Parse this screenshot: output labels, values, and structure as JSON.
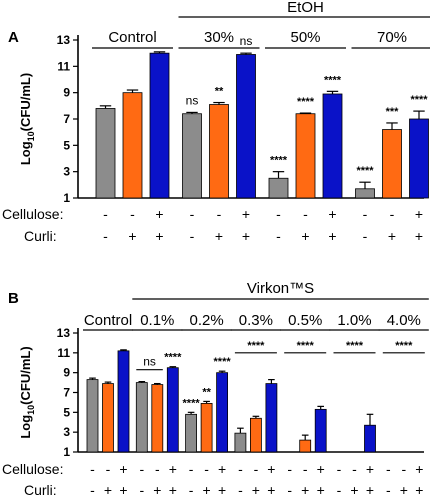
{
  "chart_data": [
    {
      "type": "bar",
      "panel": "A",
      "ylabel": "Log10(CFU/mL)",
      "ylim": [
        1,
        13
      ],
      "yticks": [
        1,
        3,
        5,
        7,
        9,
        11,
        13
      ],
      "group_header": "EtOH",
      "groups": [
        {
          "label": "Control",
          "values": [
            7.8,
            9.0,
            12.0
          ],
          "errors": [
            0.2,
            0.2,
            0.1
          ],
          "sig": [
            "",
            "",
            ""
          ]
        },
        {
          "label": "30%",
          "values": [
            7.4,
            8.1,
            11.9
          ],
          "errors": [
            0.1,
            0.15,
            0.1
          ],
          "sig": [
            "ns",
            "**",
            "ns"
          ]
        },
        {
          "label": "50%",
          "values": [
            2.5,
            7.4,
            8.9
          ],
          "errors": [
            0.5,
            0.05,
            0.2
          ],
          "sig": [
            "****",
            "****",
            "****"
          ]
        },
        {
          "label": "70%",
          "values": [
            1.7,
            6.2,
            7.0
          ],
          "errors": [
            0.5,
            0.5,
            0.6
          ],
          "sig": [
            "****",
            "***",
            "****"
          ]
        }
      ],
      "series_colors": [
        "#8c8c8c",
        "#ff6a13",
        "#0a12c8"
      ],
      "conditions": {
        "cellulose_label": "Cellulose:",
        "curli_label": "Curli:",
        "cellulose": [
          "-",
          "-",
          "+",
          "-",
          "-",
          "+",
          "-",
          "-",
          "+",
          "-",
          "-",
          "+"
        ],
        "curli": [
          "-",
          "+",
          "+",
          "-",
          "+",
          "+",
          "-",
          "+",
          "+",
          "-",
          "+",
          "+"
        ]
      }
    },
    {
      "type": "bar",
      "panel": "B",
      "ylabel": "Log10(CFU/mL)",
      "ylim": [
        1,
        13
      ],
      "yticks": [
        1,
        3,
        5,
        7,
        9,
        11,
        13
      ],
      "group_header": "Virkon™S",
      "groups": [
        {
          "label": "Control",
          "values": [
            8.3,
            7.9,
            11.2
          ],
          "errors": [
            0.15,
            0.15,
            0.1
          ],
          "sig": [
            "",
            "",
            ""
          ]
        },
        {
          "label": "0.1%",
          "values": [
            8.0,
            7.8,
            9.5
          ],
          "errors": [
            0.1,
            0.1,
            0.1
          ],
          "sig": [
            "",
            "",
            "****"
          ]
        },
        {
          "label": "0.2%",
          "values": [
            4.8,
            5.9,
            9.0
          ],
          "errors": [
            0.2,
            0.2,
            0.15
          ],
          "sig": [
            "****",
            "**",
            "****"
          ]
        },
        {
          "label": "0.3%",
          "values": [
            2.9,
            4.4,
            7.9
          ],
          "errors": [
            0.5,
            0.2,
            0.4
          ],
          "sig": [
            "",
            "",
            ""
          ]
        },
        {
          "label": "0.5%",
          "values": [
            0,
            2.2,
            5.3
          ],
          "errors": [
            0,
            0.5,
            0.3
          ],
          "sig": [
            "",
            "",
            ""
          ]
        },
        {
          "label": "1.0%",
          "values": [
            0,
            0,
            3.7
          ],
          "errors": [
            0,
            0,
            1.1
          ],
          "sig": [
            "",
            "",
            ""
          ]
        },
        {
          "label": "4.0%",
          "values": [
            0,
            0,
            0
          ],
          "errors": [
            0,
            0,
            0
          ],
          "sig": [
            "",
            "",
            ""
          ]
        }
      ],
      "brackets": [
        {
          "from_group": 1,
          "from_bar": 0,
          "to_group": 1,
          "to_bar": 1,
          "label": "ns",
          "y": 9.3
        },
        {
          "from_group": 3,
          "from_bar": 0,
          "to_group": 3,
          "to_bar": 2,
          "label": "****",
          "y": 11.0
        },
        {
          "from_group": 4,
          "from_bar": 0,
          "to_group": 4,
          "to_bar": 2,
          "label": "****",
          "y": 11.0
        },
        {
          "from_group": 5,
          "from_bar": 0,
          "to_group": 5,
          "to_bar": 2,
          "label": "****",
          "y": 11.0
        },
        {
          "from_group": 6,
          "from_bar": 0,
          "to_group": 6,
          "to_bar": 2,
          "label": "****",
          "y": 11.0
        }
      ],
      "series_colors": [
        "#8c8c8c",
        "#ff6a13",
        "#0a12c8"
      ],
      "conditions": {
        "cellulose_label": "Cellulose:",
        "curli_label": "Curli:",
        "cellulose": [
          "-",
          "-",
          "+",
          "-",
          "-",
          "+",
          "-",
          "-",
          "+",
          "-",
          "-",
          "+",
          "-",
          "-",
          "+",
          "-",
          "-",
          "+",
          "-",
          "-",
          "+"
        ],
        "curli": [
          "-",
          "+",
          "+",
          "-",
          "+",
          "+",
          "-",
          "+",
          "+",
          "-",
          "+",
          "+",
          "-",
          "+",
          "+",
          "-",
          "+",
          "+",
          "-",
          "+",
          "+"
        ]
      }
    }
  ]
}
